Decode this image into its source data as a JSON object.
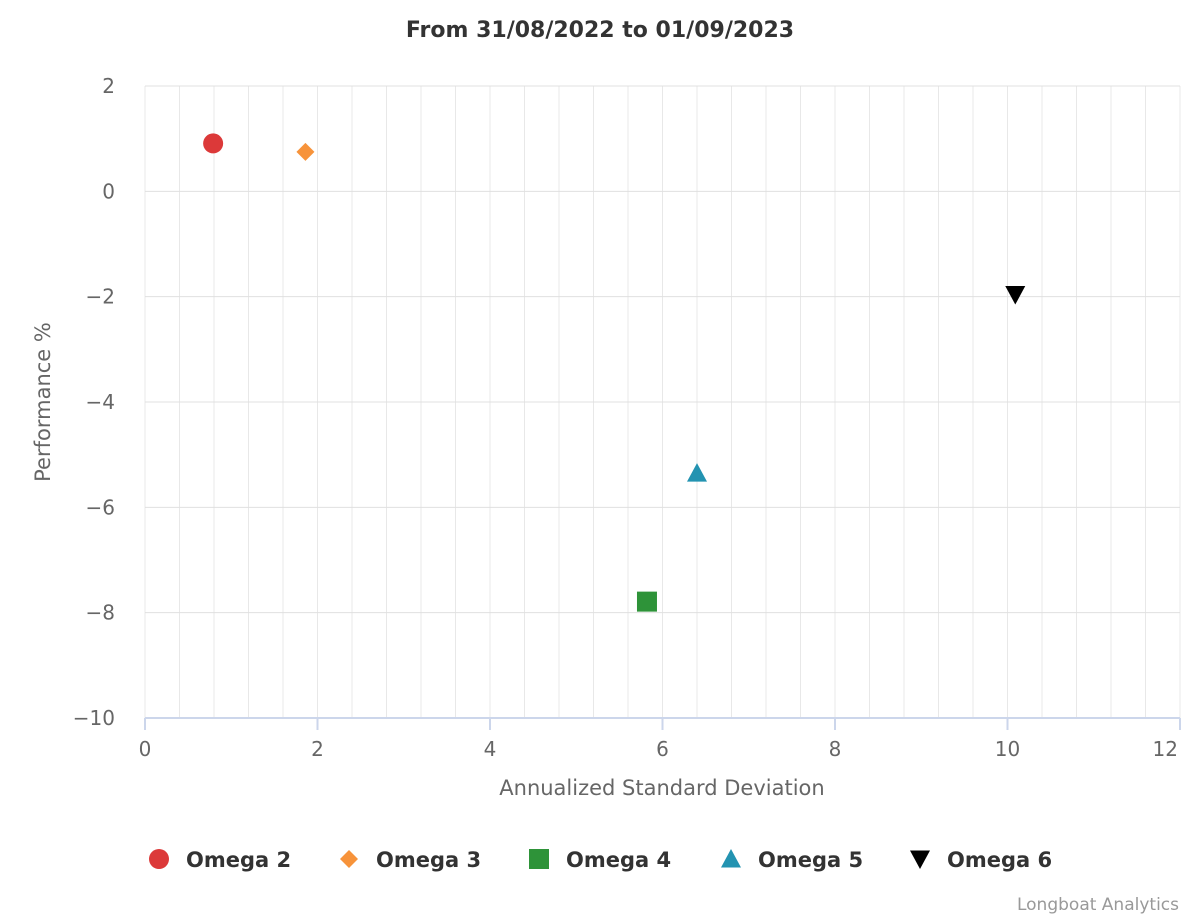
{
  "chart_data": {
    "type": "scatter",
    "title": "From 31/08/2022 to 01/09/2023",
    "xlabel": "Annualized Standard Deviation",
    "ylabel": "Performance %",
    "xlim": [
      0,
      12
    ],
    "ylim": [
      -10,
      2
    ],
    "x_ticks": [
      0,
      2,
      4,
      6,
      8,
      10,
      12
    ],
    "y_ticks": [
      2,
      0,
      -2,
      -4,
      -6,
      -8,
      -10
    ],
    "x_tick_labels": [
      "0",
      "2",
      "4",
      "6",
      "8",
      "10",
      "12"
    ],
    "y_tick_labels": [
      "2",
      "0",
      "−2",
      "−4",
      "−6",
      "−8",
      "−10"
    ],
    "grid": true,
    "legend_position": "bottom",
    "series": [
      {
        "name": "Omega 2",
        "marker": "circle",
        "color": "#dc3939",
        "x": 0.79,
        "y": 0.91
      },
      {
        "name": "Omega 3",
        "marker": "diamond",
        "color": "#f7933a",
        "x": 1.86,
        "y": 0.75
      },
      {
        "name": "Omega 4",
        "marker": "square",
        "color": "#2e9339",
        "x": 5.82,
        "y": -7.79
      },
      {
        "name": "Omega 5",
        "marker": "triangle",
        "color": "#2393b1",
        "x": 6.4,
        "y": -5.35
      },
      {
        "name": "Omega 6",
        "marker": "triangle-down",
        "color": "#000000",
        "x": 10.09,
        "y": -1.96
      }
    ]
  },
  "credits": "Longboat Analytics"
}
